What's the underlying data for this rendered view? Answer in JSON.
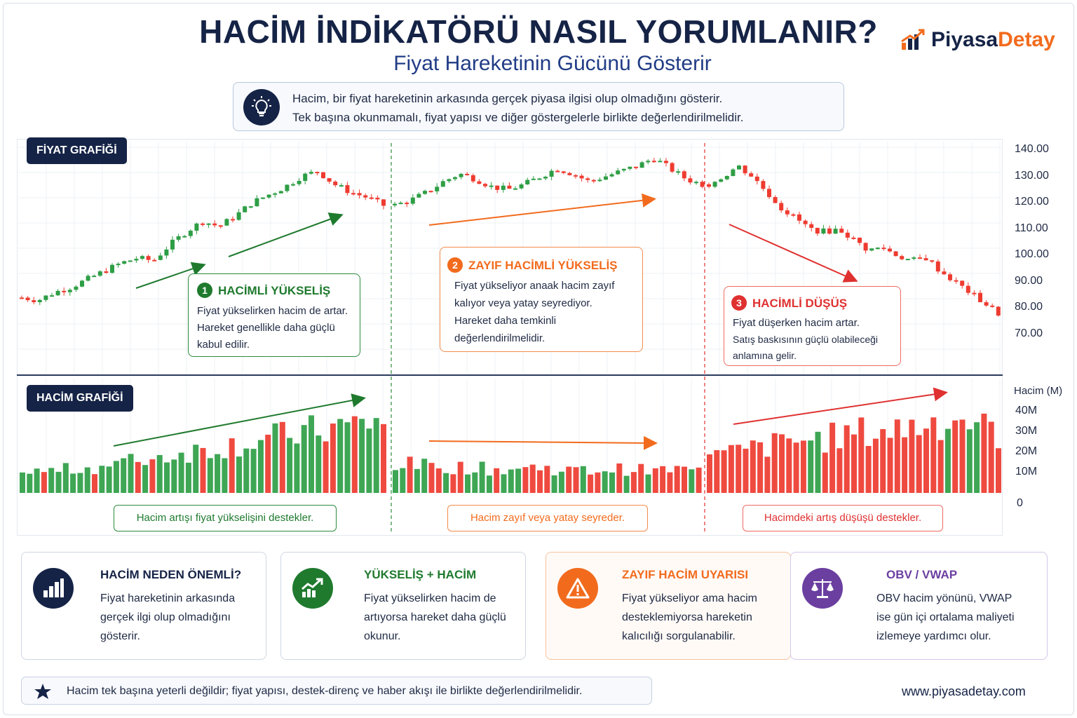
{
  "header": {
    "title": "HACİM İNDİKATÖRÜ NASIL YORUMLANIR?",
    "subtitle": "Fiyat Hareketinin Gücünü Gösterir",
    "logo_part1": "Piyasa",
    "logo_part2": "Detay"
  },
  "info": {
    "line1": "Hacim, bir fiyat hareketinin arkasında gerçek piyasa ilgisi olup olmadığını gösterir.",
    "line2": "Tek başına okunmamalı, fiyat yapısı ve diğer göstergelerle birlikte değerlendirilmelidir.",
    "icon": "lightbulb-icon"
  },
  "price_panel": {
    "badge": "FİYAT GRAFİĞİ",
    "y_ticks": [
      "140.00",
      "130.00",
      "120.00",
      "110.00",
      "100.00",
      "90.00",
      "80.00",
      "70.00"
    ],
    "cards": [
      {
        "num": "1",
        "title": "HACİMLİ YÜKSELİŞ",
        "lines": [
          "Fiyat yükselirken hacim de artar.",
          "Hareket genellikle daha güçlü",
          "kabul edilir."
        ],
        "color": "#1f7a2e"
      },
      {
        "num": "2",
        "title": "ZAYIF HACİMLİ YÜKSELİŞ",
        "lines": [
          "Fiyat yükseliyor anaak hacim zayıf",
          "kalıyor veya yatay seyrediyor.",
          "Hareket daha temkinli",
          "değerlendirilmelidir."
        ],
        "color": "#f26b1d"
      },
      {
        "num": "3",
        "title": "HACİMLİ DÜŞÜŞ",
        "lines": [
          "Fiyat düşerken hacim artar.",
          "Satış baskısının güçlü olabileceği",
          "anlamına gelir."
        ],
        "color": "#e03131"
      }
    ]
  },
  "volume_panel": {
    "badge": "HACİM GRAFİĞİ",
    "unit_label": "Hacim (M)",
    "y_ticks": [
      "40M",
      "30M",
      "20M",
      "10M",
      "0"
    ],
    "captions": [
      "Hacim artışı fiyat yükselişini destekler.",
      "Hacim zayıf veya yatay seyreder.",
      "Hacimdeki artış düşüşü destekler."
    ]
  },
  "chart_data": {
    "type": "candlestick-with-volume",
    "price_ylim": [
      70,
      140
    ],
    "volume_ylim": [
      0,
      40
    ],
    "volume_unit": "M",
    "grid": true,
    "phases": [
      {
        "label": "HACİMLİ YÜKSELİŞ",
        "close_path": [
          84,
          83,
          86,
          88,
          91,
          94,
          97,
          99,
          98,
          104,
          109,
          113,
          111,
          115,
          120,
          123,
          126,
          130,
          132,
          127,
          124,
          122,
          119
        ],
        "volume_path": [
          10,
          11,
          12,
          13,
          15,
          17,
          19,
          21,
          23,
          25,
          27,
          29,
          31,
          33,
          35,
          37
        ]
      },
      {
        "label": "ZAYIF HACİMLİ YÜKSELİŞ",
        "close_path": [
          119,
          121,
          124,
          128,
          131,
          129,
          126,
          125,
          127,
          130,
          133,
          131,
          128,
          130,
          132,
          134,
          137,
          133,
          129,
          127
        ],
        "volume_path": [
          15,
          14,
          13,
          13,
          12,
          12,
          13,
          12,
          11,
          12,
          12,
          11,
          12,
          11
        ]
      },
      {
        "label": "HACİMLİ DÜŞÜŞ",
        "close_path": [
          127,
          130,
          134,
          130,
          124,
          118,
          114,
          110,
          109,
          110,
          106,
          102,
          103,
          100,
          98,
          99,
          94,
          90,
          86,
          82,
          78
        ],
        "volume_path": [
          18,
          20,
          22,
          24,
          26,
          27,
          28,
          30,
          31,
          32,
          34,
          36,
          38,
          36,
          30
        ]
      }
    ]
  },
  "features": [
    {
      "title": "HACİM NEDEN ÖNEMLİ?",
      "lines": [
        "Fiyat hareketinin arkasında",
        "gerçek ilgi olup olmadığını",
        "gösterir."
      ],
      "icon": "bar-chart-icon",
      "color": "#152346"
    },
    {
      "title": "YÜKSELİŞ + HACİM",
      "lines": [
        "Fiyat yükselirken hacim de",
        "artıyorsa hareket daha güçlü",
        "okunur."
      ],
      "icon": "trend-up-icon",
      "color": "#1f7a2e"
    },
    {
      "title": "ZAYIF HACİM UYARISI",
      "lines": [
        "Fiyat yükseliyor ama hacim",
        "desteklemiyorsa hareketin",
        "kalıcılığı sorgulanabilir."
      ],
      "icon": "warning-icon",
      "color": "#f26b1d"
    },
    {
      "title": "OBV / VWAP",
      "lines": [
        "OBV hacim yönünü, VWAP",
        "ise gün içi ortalama maliyeti",
        "izlemeye yardımcı olur."
      ],
      "icon": "balance-scale-icon",
      "color": "#6b3fa0"
    }
  ],
  "footer": {
    "note": "Hacim tek başına yeterli değildir; fiyat yapısı, destek-direnç ve haber akışı ile birlikte değerlendirilmelidir.",
    "note_icon": "star-icon",
    "website": "www.piyasadetay.com"
  },
  "colors": {
    "navy": "#152346",
    "green": "#2e9e45",
    "red": "#ee3b30",
    "orange": "#f26b1d",
    "purple": "#6b3fa0"
  }
}
